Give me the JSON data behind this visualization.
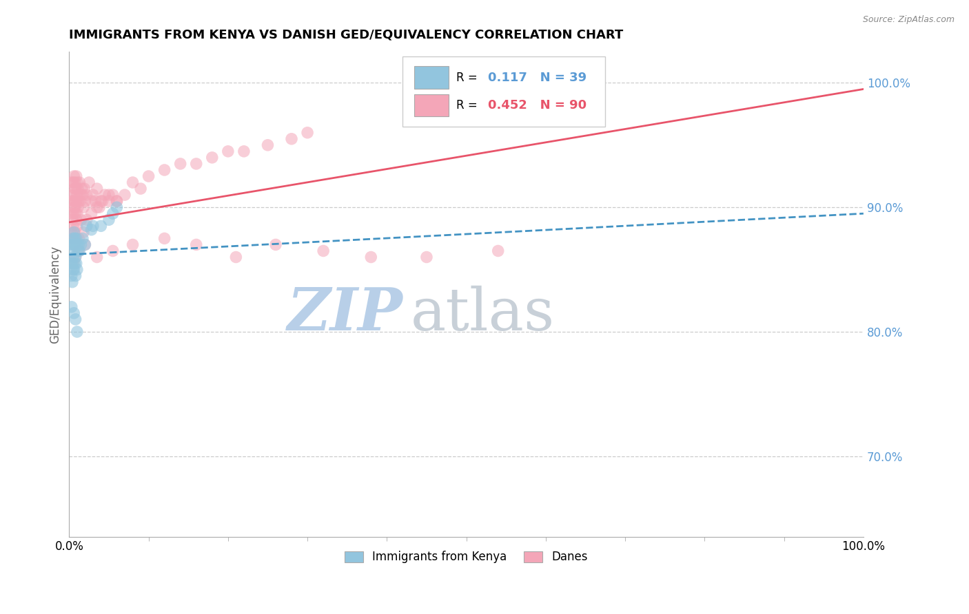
{
  "title": "IMMIGRANTS FROM KENYA VS DANISH GED/EQUIVALENCY CORRELATION CHART",
  "source": "Source: ZipAtlas.com",
  "ylabel": "GED/Equivalency",
  "right_yticks": [
    0.7,
    0.8,
    0.9,
    1.0
  ],
  "right_yticklabels": [
    "70.0%",
    "80.0%",
    "90.0%",
    "100.0%"
  ],
  "blue_label": "Immigrants from Kenya",
  "pink_label": "Danes",
  "blue_R": 0.117,
  "blue_N": 39,
  "pink_R": 0.452,
  "pink_N": 90,
  "blue_color": "#92c5de",
  "pink_color": "#f4a6b8",
  "blue_line_color": "#4393c3",
  "pink_line_color": "#e8546a",
  "watermark_blue": "ZIP",
  "watermark_gray": "atlas",
  "watermark_blue_color": "#b8cfe8",
  "watermark_gray_color": "#c8d0d8",
  "xlim": [
    0.0,
    1.0
  ],
  "ylim": [
    0.635,
    1.025
  ],
  "grid_yticks": [
    0.7,
    0.8,
    0.9,
    1.0
  ],
  "grid_color": "#cccccc",
  "title_fontsize": 13,
  "axis_label_color": "#666666",
  "right_axis_color": "#5b9bd5",
  "blue_x": [
    0.002,
    0.003,
    0.003,
    0.004,
    0.004,
    0.004,
    0.005,
    0.005,
    0.005,
    0.006,
    0.006,
    0.006,
    0.007,
    0.007,
    0.007,
    0.008,
    0.008,
    0.008,
    0.009,
    0.009,
    0.01,
    0.01,
    0.011,
    0.012,
    0.013,
    0.015,
    0.017,
    0.02,
    0.022,
    0.028,
    0.03,
    0.04,
    0.05,
    0.055,
    0.06,
    0.003,
    0.006,
    0.008,
    0.01
  ],
  "blue_y": [
    0.855,
    0.87,
    0.845,
    0.87,
    0.855,
    0.84,
    0.875,
    0.86,
    0.85,
    0.865,
    0.85,
    0.88,
    0.87,
    0.855,
    0.875,
    0.86,
    0.845,
    0.87,
    0.875,
    0.855,
    0.87,
    0.85,
    0.865,
    0.87,
    0.865,
    0.87,
    0.875,
    0.87,
    0.885,
    0.882,
    0.885,
    0.885,
    0.89,
    0.895,
    0.9,
    0.82,
    0.815,
    0.81,
    0.8
  ],
  "pink_x": [
    0.002,
    0.003,
    0.003,
    0.004,
    0.004,
    0.005,
    0.005,
    0.005,
    0.006,
    0.006,
    0.006,
    0.007,
    0.007,
    0.007,
    0.008,
    0.008,
    0.008,
    0.009,
    0.009,
    0.01,
    0.01,
    0.01,
    0.011,
    0.011,
    0.012,
    0.013,
    0.014,
    0.015,
    0.016,
    0.017,
    0.018,
    0.019,
    0.02,
    0.022,
    0.025,
    0.028,
    0.03,
    0.033,
    0.035,
    0.038,
    0.04,
    0.045,
    0.05,
    0.055,
    0.06,
    0.003,
    0.004,
    0.005,
    0.006,
    0.007,
    0.008,
    0.009,
    0.01,
    0.012,
    0.015,
    0.018,
    0.022,
    0.028,
    0.035,
    0.042,
    0.05,
    0.06,
    0.07,
    0.08,
    0.09,
    0.1,
    0.12,
    0.14,
    0.16,
    0.18,
    0.2,
    0.22,
    0.25,
    0.28,
    0.3,
    0.005,
    0.008,
    0.012,
    0.02,
    0.035,
    0.055,
    0.08,
    0.12,
    0.16,
    0.21,
    0.26,
    0.32,
    0.38,
    0.45,
    0.54
  ],
  "pink_y": [
    0.91,
    0.895,
    0.92,
    0.905,
    0.89,
    0.905,
    0.92,
    0.895,
    0.91,
    0.925,
    0.9,
    0.915,
    0.9,
    0.92,
    0.905,
    0.915,
    0.895,
    0.905,
    0.925,
    0.91,
    0.895,
    0.92,
    0.9,
    0.915,
    0.905,
    0.92,
    0.905,
    0.91,
    0.915,
    0.91,
    0.9,
    0.915,
    0.905,
    0.91,
    0.92,
    0.905,
    0.91,
    0.905,
    0.915,
    0.9,
    0.905,
    0.91,
    0.905,
    0.91,
    0.905,
    0.88,
    0.875,
    0.885,
    0.87,
    0.88,
    0.875,
    0.89,
    0.885,
    0.875,
    0.89,
    0.88,
    0.89,
    0.895,
    0.9,
    0.905,
    0.91,
    0.905,
    0.91,
    0.92,
    0.915,
    0.925,
    0.93,
    0.935,
    0.935,
    0.94,
    0.945,
    0.945,
    0.95,
    0.955,
    0.96,
    0.855,
    0.86,
    0.865,
    0.87,
    0.86,
    0.865,
    0.87,
    0.875,
    0.87,
    0.86,
    0.87,
    0.865,
    0.86,
    0.86,
    0.865
  ],
  "blue_trend_x": [
    0.0,
    1.0
  ],
  "blue_trend_y": [
    0.862,
    0.895
  ],
  "pink_trend_x": [
    0.0,
    1.0
  ],
  "pink_trend_y": [
    0.888,
    0.995
  ],
  "xticks": [
    0.0,
    1.0
  ],
  "xticklabels": [
    "0.0%",
    "100.0%"
  ]
}
